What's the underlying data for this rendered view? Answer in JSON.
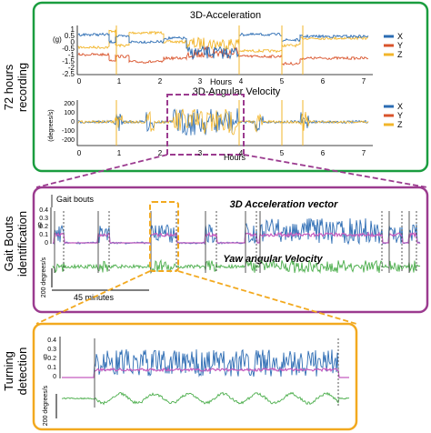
{
  "side_labels": {
    "recording": [
      "72 hours",
      "recording"
    ],
    "gait": [
      "Gait Bouts",
      "identification"
    ],
    "turning": [
      "Turning",
      "detection"
    ]
  },
  "colors": {
    "green_frame": "#1a9d3f",
    "purple_frame": "#9b3b8f",
    "orange_frame": "#f2a91f",
    "x_blue": "#2b6cb3",
    "y_red": "#d9532b",
    "z_yellow": "#f2b52a",
    "signal_blue": "#2e6db4",
    "signal_magenta": "#c55cbf",
    "signal_green": "#4cae4c",
    "marker_gray": "#555555"
  },
  "acceleration_panel": {
    "title": "3D-Acceleration",
    "unit": "(g)",
    "y_ticks": [
      "1",
      "0.5",
      "0",
      "-0.5",
      "-1",
      "-1.5",
      "-2",
      "-2.5"
    ],
    "x_ticks": [
      "0",
      "1",
      "2",
      "3",
      "4",
      "5",
      "6",
      "7"
    ],
    "x_label": "Hours",
    "legend": [
      "X",
      "Y",
      "Z"
    ]
  },
  "angular_panel": {
    "title": "3D-Angular Velocity",
    "unit": "(degrees/s)",
    "y_ticks": [
      "200",
      "100",
      "0",
      "-100",
      "-200"
    ],
    "x_ticks": [
      "0",
      "1",
      "2",
      "3",
      "4",
      "5",
      "6",
      "7"
    ],
    "x_label": "Hours",
    "legend": [
      "X",
      "Y",
      "Z"
    ]
  },
  "gait_panel": {
    "legend_label": "Gait bouts",
    "acc_title": "3D Acceleration vector",
    "yaw_title": "Yaw angular Velocity",
    "y_ticks": [
      "0.4",
      "0.3",
      "0.2",
      "0.1",
      "0"
    ],
    "y_unit": "g",
    "scale_label": "200 degrees/s",
    "time_scale": "45 minutes"
  },
  "turning_panel": {
    "y_ticks": [
      "0.4",
      "0.3",
      "0.2",
      "0.1",
      "0"
    ],
    "y_unit": "g",
    "scale_label": "200 degrees/s"
  }
}
